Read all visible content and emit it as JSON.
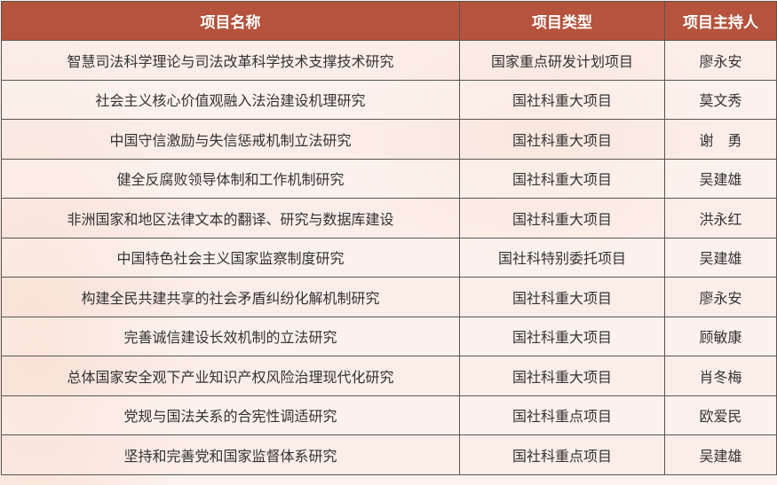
{
  "table": {
    "headers": [
      "项目名称",
      "项目类型",
      "项目主持人"
    ],
    "rows": [
      [
        "智慧司法科学理论与司法改革科学技术支撑技术研究",
        "国家重点研发计划项目",
        "廖永安"
      ],
      [
        "社会主义核心价值观融入法治建设机理研究",
        "国社科重大项目",
        "莫文秀"
      ],
      [
        "中国守信激励与失信惩戒机制立法研究",
        "国社科重大项目",
        "谢　勇"
      ],
      [
        "健全反腐败领导体制和工作机制研究",
        "国社科重大项目",
        "吴建雄"
      ],
      [
        "非洲国家和地区法律文本的翻译、研究与数据库建设",
        "国社科重大项目",
        "洪永红"
      ],
      [
        "中国特色社会主义国家监察制度研究",
        "国社科特别委托项目",
        "吴建雄"
      ],
      [
        "构建全民共建共享的社会矛盾纠纷化解机制研究",
        "国社科重大项目",
        "廖永安"
      ],
      [
        "完善诚信建设长效机制的立法研究",
        "国社科重大项目",
        "顾敏康"
      ],
      [
        "总体国家安全观下产业知识产权风险治理现代化研究",
        "国社科重大项目",
        "肖冬梅"
      ],
      [
        "党规与国法关系的合宪性调适研究",
        "国社科重点项目",
        "欧爱民"
      ],
      [
        "坚持和完善党和国家监督体系研究",
        "国社科重点项目",
        "吴建雄"
      ]
    ]
  },
  "colors": {
    "header": "#b5533c",
    "border": "#5a5452"
  }
}
